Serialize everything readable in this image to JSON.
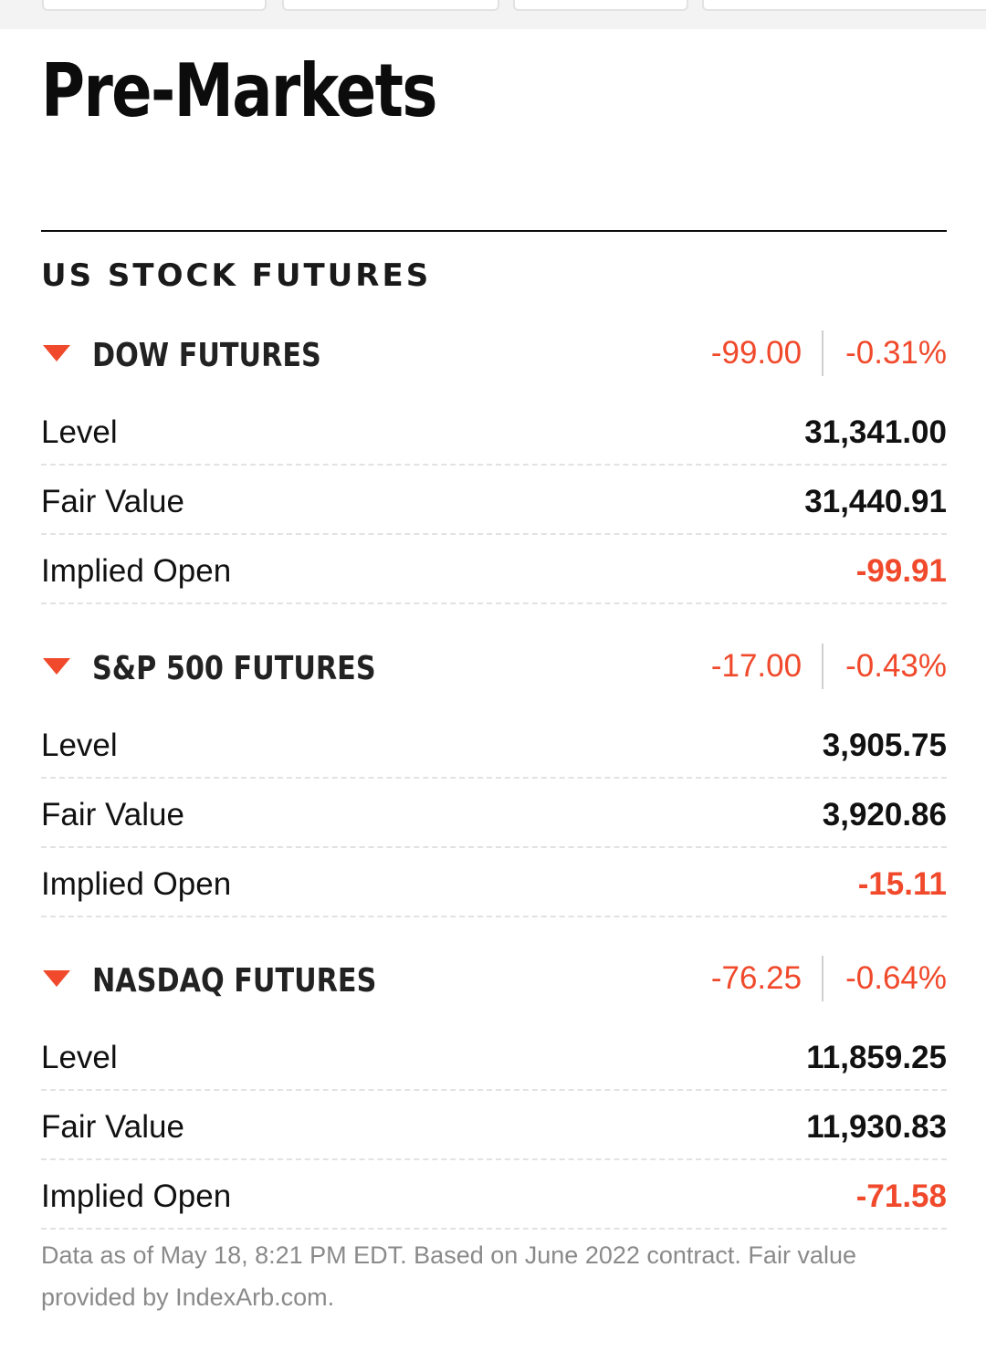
{
  "page": {
    "title": "Pre-Markets",
    "section_title": "US STOCK FUTURES"
  },
  "futures": [
    {
      "name": "DOW FUTURES",
      "change": "-99.00",
      "change_pct": "-0.31%",
      "rows": [
        {
          "label": "Level",
          "value": "31,341.00"
        },
        {
          "label": "Fair Value",
          "value": "31,440.91"
        },
        {
          "label": "Implied Open",
          "value": "-99.91"
        }
      ]
    },
    {
      "name": "S&P 500 FUTURES",
      "change": "-17.00",
      "change_pct": "-0.43%",
      "rows": [
        {
          "label": "Level",
          "value": "3,905.75"
        },
        {
          "label": "Fair Value",
          "value": "3,920.86"
        },
        {
          "label": "Implied Open",
          "value": "-15.11"
        }
      ]
    },
    {
      "name": "NASDAQ FUTURES",
      "change": "-76.25",
      "change_pct": "-0.64%",
      "rows": [
        {
          "label": "Level",
          "value": "11,859.25"
        },
        {
          "label": "Fair Value",
          "value": "11,930.83"
        },
        {
          "label": "Implied Open",
          "value": "-71.58"
        }
      ]
    }
  ],
  "footnote": "Data as of May 18, 8:21 PM EDT. Based on June 2022 contract. Fair value provided by IndexArb.com.",
  "icons": {
    "direction": "down-triangle-icon"
  },
  "colors": {
    "negative": "#f0492b",
    "text": "#0c0c0c",
    "muted": "#8a8a8a"
  }
}
